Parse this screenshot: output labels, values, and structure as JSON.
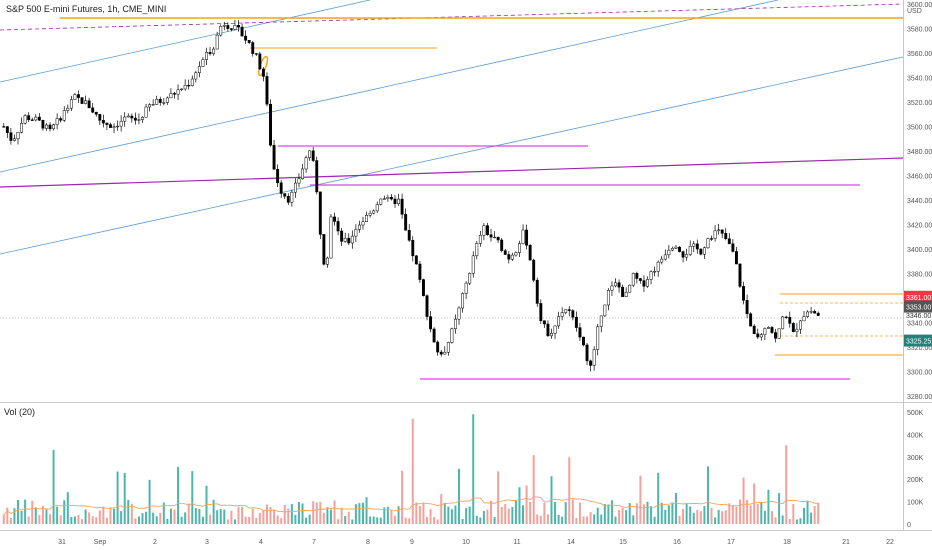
{
  "header": {
    "title": "S&P 500 E-mini Futures, 1h, CME_MINI",
    "volume_label": "Vol (20)",
    "currency": "USD"
  },
  "colors": {
    "up": "#000000",
    "down": "#000000",
    "vol_up": "#4db6ac",
    "vol_down": "#f5a199",
    "vol_ma": "#f5a55c",
    "orange_line": "#f7a11a",
    "magenta_line": "#e040fb",
    "purple_line": "#9c27b0",
    "blue_line": "#5b9bd5",
    "badge_red": "#f23645",
    "badge_gray": "#555555",
    "badge_teal": "#26807a"
  },
  "chart_data": {
    "type": "candlestick",
    "price_axis": {
      "min": 3280,
      "max": 3600,
      "ticks": [
        3280,
        3300,
        3320,
        3340,
        3360,
        3380,
        3400,
        3420,
        3440,
        3460,
        3480,
        3500,
        3520,
        3540,
        3560,
        3580,
        3600
      ],
      "tick_labels": [
        "3280.00",
        "3300.00",
        "3320.00",
        "3340.00",
        "3360.00",
        "3380.00",
        "3400.00",
        "3420.00",
        "3440.00",
        "3460.00",
        "3480.00",
        "3500.00",
        "3520.00",
        "3540.00",
        "3560.00",
        "3580.00",
        "3600.00"
      ]
    },
    "volume_axis": {
      "min": 0,
      "max": 500000,
      "ticks": [
        0,
        100000,
        200000,
        300000,
        400000,
        500000
      ],
      "tick_labels": [
        "0",
        "100K",
        "200K",
        "300K",
        "400K",
        "500K"
      ]
    },
    "time_axis": {
      "labels": [
        "31",
        "Sep",
        "2",
        "3",
        "4",
        "7",
        "8",
        "9",
        "10",
        "11",
        "14",
        "15",
        "16",
        "17",
        "18",
        "21",
        "22"
      ]
    },
    "price_badges": [
      {
        "value": 3361.0,
        "label": "3361.00",
        "style": "red"
      },
      {
        "value": 3353.0,
        "label": "3353.00",
        "style": "gray"
      },
      {
        "value": 3346.0,
        "label": "3346.00",
        "style": "plain"
      },
      {
        "value": 3325.25,
        "label": "3325.25",
        "style": "teal"
      }
    ],
    "price_path": [
      {
        "t": 0,
        "p": 3500
      },
      {
        "t": 2,
        "p": 3488
      },
      {
        "t": 5,
        "p": 3508
      },
      {
        "t": 8,
        "p": 3505
      },
      {
        "t": 11,
        "p": 3496
      },
      {
        "t": 14,
        "p": 3510
      },
      {
        "t": 17,
        "p": 3524
      },
      {
        "t": 20,
        "p": 3518
      },
      {
        "t": 23,
        "p": 3505
      },
      {
        "t": 26,
        "p": 3500
      },
      {
        "t": 29,
        "p": 3507
      },
      {
        "t": 32,
        "p": 3505
      },
      {
        "t": 35,
        "p": 3518
      },
      {
        "t": 38,
        "p": 3522
      },
      {
        "t": 41,
        "p": 3528
      },
      {
        "t": 44,
        "p": 3535
      },
      {
        "t": 47,
        "p": 3552
      },
      {
        "t": 50,
        "p": 3566
      },
      {
        "t": 52,
        "p": 3585
      },
      {
        "t": 54,
        "p": 3582
      },
      {
        "t": 56,
        "p": 3578
      },
      {
        "t": 58,
        "p": 3570
      },
      {
        "t": 60,
        "p": 3558
      },
      {
        "t": 62,
        "p": 3540
      },
      {
        "t": 63,
        "p": 3505
      },
      {
        "t": 64,
        "p": 3470
      },
      {
        "t": 65,
        "p": 3458
      },
      {
        "t": 66,
        "p": 3448
      },
      {
        "t": 68,
        "p": 3440
      },
      {
        "t": 70,
        "p": 3455
      },
      {
        "t": 72,
        "p": 3474
      },
      {
        "t": 73,
        "p": 3482
      },
      {
        "t": 74,
        "p": 3464
      },
      {
        "t": 75,
        "p": 3430
      },
      {
        "t": 76,
        "p": 3390
      },
      {
        "t": 77,
        "p": 3392
      },
      {
        "t": 78,
        "p": 3430
      },
      {
        "t": 79,
        "p": 3420
      },
      {
        "t": 80,
        "p": 3408
      },
      {
        "t": 82,
        "p": 3405
      },
      {
        "t": 84,
        "p": 3418
      },
      {
        "t": 86,
        "p": 3425
      },
      {
        "t": 88,
        "p": 3432
      },
      {
        "t": 90,
        "p": 3444
      },
      {
        "t": 92,
        "p": 3438
      },
      {
        "t": 94,
        "p": 3440
      },
      {
        "t": 96,
        "p": 3410
      },
      {
        "t": 98,
        "p": 3390
      },
      {
        "t": 100,
        "p": 3360
      },
      {
        "t": 102,
        "p": 3330
      },
      {
        "t": 104,
        "p": 3310
      },
      {
        "t": 106,
        "p": 3325
      },
      {
        "t": 108,
        "p": 3345
      },
      {
        "t": 110,
        "p": 3370
      },
      {
        "t": 112,
        "p": 3395
      },
      {
        "t": 114,
        "p": 3418
      },
      {
        "t": 116,
        "p": 3410
      },
      {
        "t": 118,
        "p": 3405
      },
      {
        "t": 120,
        "p": 3392
      },
      {
        "t": 122,
        "p": 3400
      },
      {
        "t": 124,
        "p": 3415
      },
      {
        "t": 126,
        "p": 3380
      },
      {
        "t": 128,
        "p": 3340
      },
      {
        "t": 130,
        "p": 3330
      },
      {
        "t": 132,
        "p": 3345
      },
      {
        "t": 134,
        "p": 3352
      },
      {
        "t": 136,
        "p": 3340
      },
      {
        "t": 138,
        "p": 3320
      },
      {
        "t": 140,
        "p": 3302
      },
      {
        "t": 142,
        "p": 3345
      },
      {
        "t": 144,
        "p": 3365
      },
      {
        "t": 146,
        "p": 3372
      },
      {
        "t": 148,
        "p": 3360
      },
      {
        "t": 150,
        "p": 3378
      },
      {
        "t": 152,
        "p": 3370
      },
      {
        "t": 154,
        "p": 3380
      },
      {
        "t": 156,
        "p": 3388
      },
      {
        "t": 158,
        "p": 3400
      },
      {
        "t": 160,
        "p": 3405
      },
      {
        "t": 162,
        "p": 3395
      },
      {
        "t": 164,
        "p": 3402
      },
      {
        "t": 166,
        "p": 3398
      },
      {
        "t": 168,
        "p": 3410
      },
      {
        "t": 170,
        "p": 3415
      },
      {
        "t": 172,
        "p": 3408
      },
      {
        "t": 174,
        "p": 3395
      },
      {
        "t": 176,
        "p": 3360
      },
      {
        "t": 178,
        "p": 3335
      },
      {
        "t": 180,
        "p": 3330
      },
      {
        "t": 182,
        "p": 3340
      },
      {
        "t": 184,
        "p": 3325
      },
      {
        "t": 186,
        "p": 3350
      },
      {
        "t": 188,
        "p": 3330
      },
      {
        "t": 190,
        "p": 3345
      },
      {
        "t": 192,
        "p": 3350
      },
      {
        "t": 194,
        "p": 3346
      }
    ]
  }
}
